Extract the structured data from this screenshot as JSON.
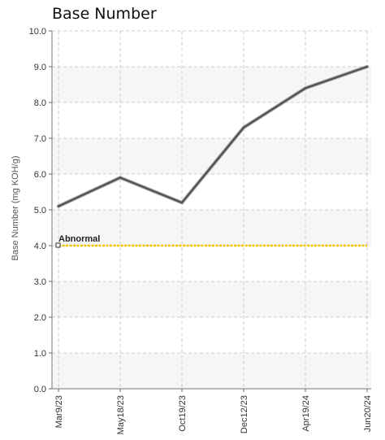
{
  "chart_data": {
    "type": "line",
    "title": "Base Number",
    "xlabel": "",
    "ylabel": "Base Number (mg KOH/g)",
    "categories": [
      "Mar9/23",
      "May18/23",
      "Oct19/23",
      "Dec12/23",
      "Apr19/24",
      "Jun20/24"
    ],
    "series": [
      {
        "values": [
          5.1,
          5.9,
          5.2,
          7.3,
          8.4,
          9.0
        ],
        "color": "#555555"
      }
    ],
    "thresholds": [
      {
        "label": "Abnormal",
        "value": 4.0,
        "color": "#f2c500"
      }
    ],
    "ylim": [
      0,
      10
    ],
    "yticks": [
      "0.0",
      "1.0",
      "2.0",
      "3.0",
      "4.0",
      "5.0",
      "6.0",
      "7.0",
      "8.0",
      "9.0",
      "10.0"
    ],
    "grid": true,
    "band_colors": [
      "#f6f6f6",
      "#ffffff"
    ]
  }
}
